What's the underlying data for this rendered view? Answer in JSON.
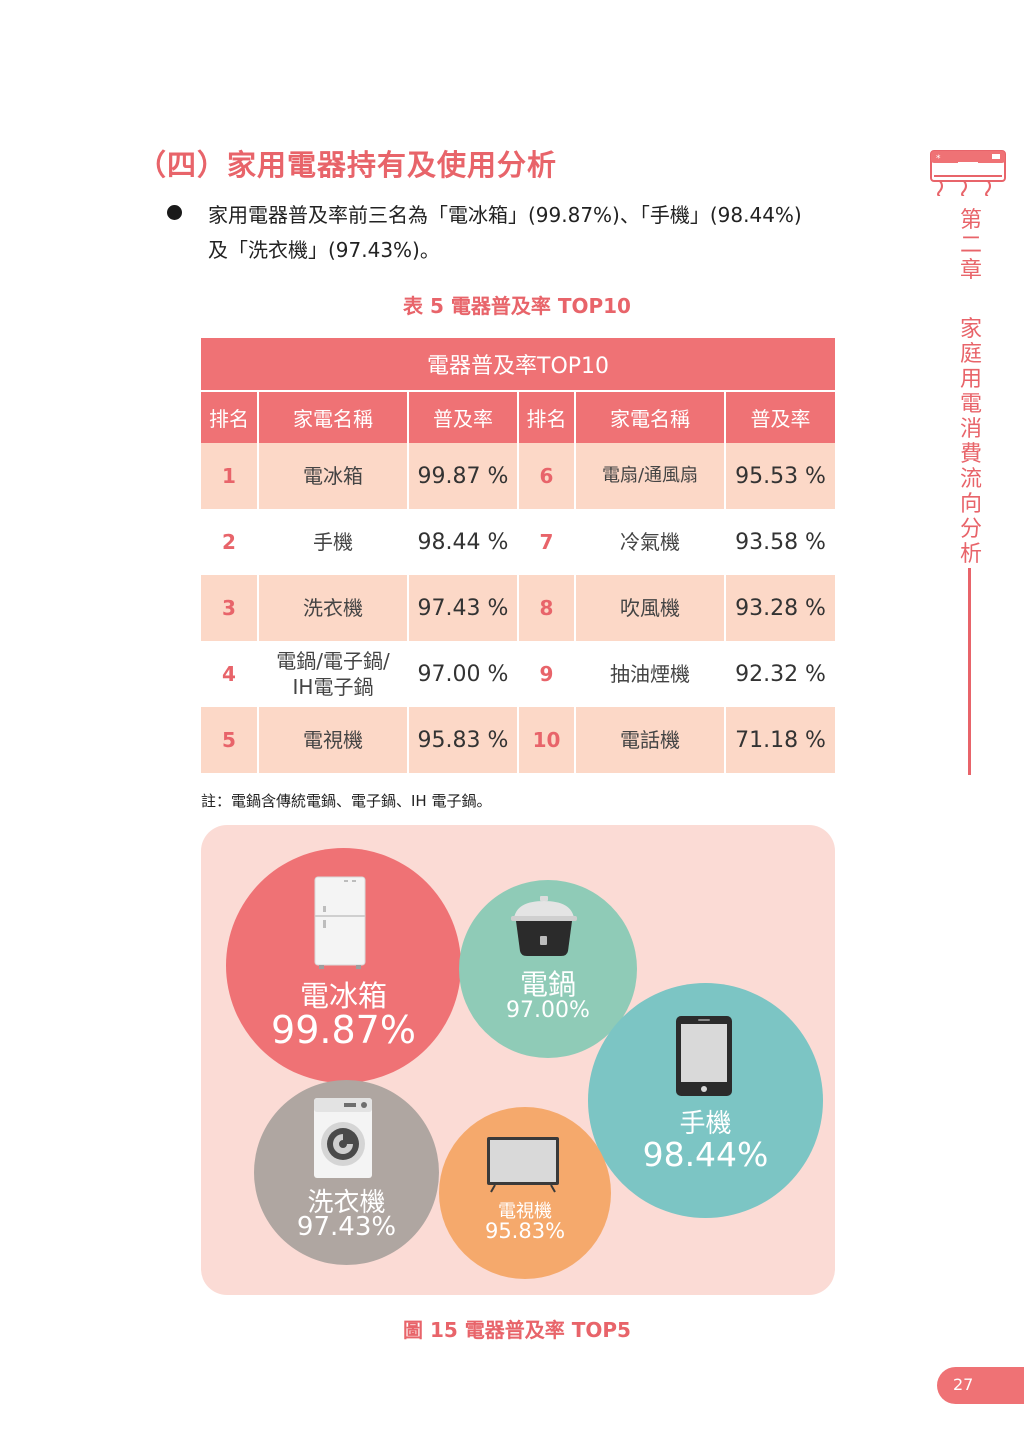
{
  "section": {
    "title": "（四）家用電器持有及使用分析",
    "bullet_line1": "家用電器普及率前三名為「電冰箱」(99.87%)、「手機」(98.44%)",
    "bullet_line2": "及「洗衣機」(97.43%)。"
  },
  "table": {
    "caption": "表 5 電器普及率 TOP10",
    "header": "電器普及率TOP10",
    "columns": [
      "排名",
      "家電名稱",
      "普及率",
      "排名",
      "家電名稱",
      "普及率"
    ],
    "rows": [
      {
        "rank_a": "1",
        "name_a": "電冰箱",
        "rate_a": "99.87 %",
        "rank_b": "6",
        "name_b": "電扇/通風扇",
        "rate_b": "95.53 %"
      },
      {
        "rank_a": "2",
        "name_a": "手機",
        "rate_a": "98.44 %",
        "rank_b": "7",
        "name_b": "冷氣機",
        "rate_b": "93.58 %"
      },
      {
        "rank_a": "3",
        "name_a": "洗衣機",
        "rate_a": "97.43 %",
        "rank_b": "8",
        "name_b": "吹風機",
        "rate_b": "93.28 %"
      },
      {
        "rank_a": "4",
        "name_a_line1": "電鍋/電子鍋/",
        "name_a_line2": "IH電子鍋",
        "rate_a": "97.00 %",
        "rank_b": "9",
        "name_b": "抽油煙機",
        "rate_b": "92.32 %"
      },
      {
        "rank_a": "5",
        "name_a": "電視機",
        "rate_a": "95.83 %",
        "rank_b": "10",
        "name_b": "電話機",
        "rate_b": "71.18 %"
      }
    ],
    "note": "註：電鍋含傳統電鍋、電子鍋、IH 電子鍋。"
  },
  "figure": {
    "caption": "圖 15 電器普及率 TOP5",
    "bubbles": [
      {
        "name": "電冰箱",
        "rate": "99.87%",
        "icon": "refrigerator-icon",
        "color": "#ef7275"
      },
      {
        "name": "電鍋",
        "rate": "97.00%",
        "icon": "rice-cooker-icon",
        "color": "#8fcbb7"
      },
      {
        "name": "手機",
        "rate": "98.44%",
        "icon": "mobile-phone-icon",
        "color": "#7cc5c4"
      },
      {
        "name": "洗衣機",
        "rate": "97.43%",
        "icon": "washing-machine-icon",
        "color": "#afa6a1"
      },
      {
        "name": "電視機",
        "rate": "95.83%",
        "icon": "television-icon",
        "color": "#f5a96c"
      }
    ]
  },
  "sidebar": {
    "chapter_label": "第二章",
    "chapter_title": "家庭用電消費流向分析",
    "icon": "air-conditioner-icon"
  },
  "page_number": "27",
  "colors": {
    "accent": "#e8646a",
    "table_header": "#ef7275",
    "row_tint": "#fcd8c7",
    "panel_bg": "#fbdbd5"
  }
}
